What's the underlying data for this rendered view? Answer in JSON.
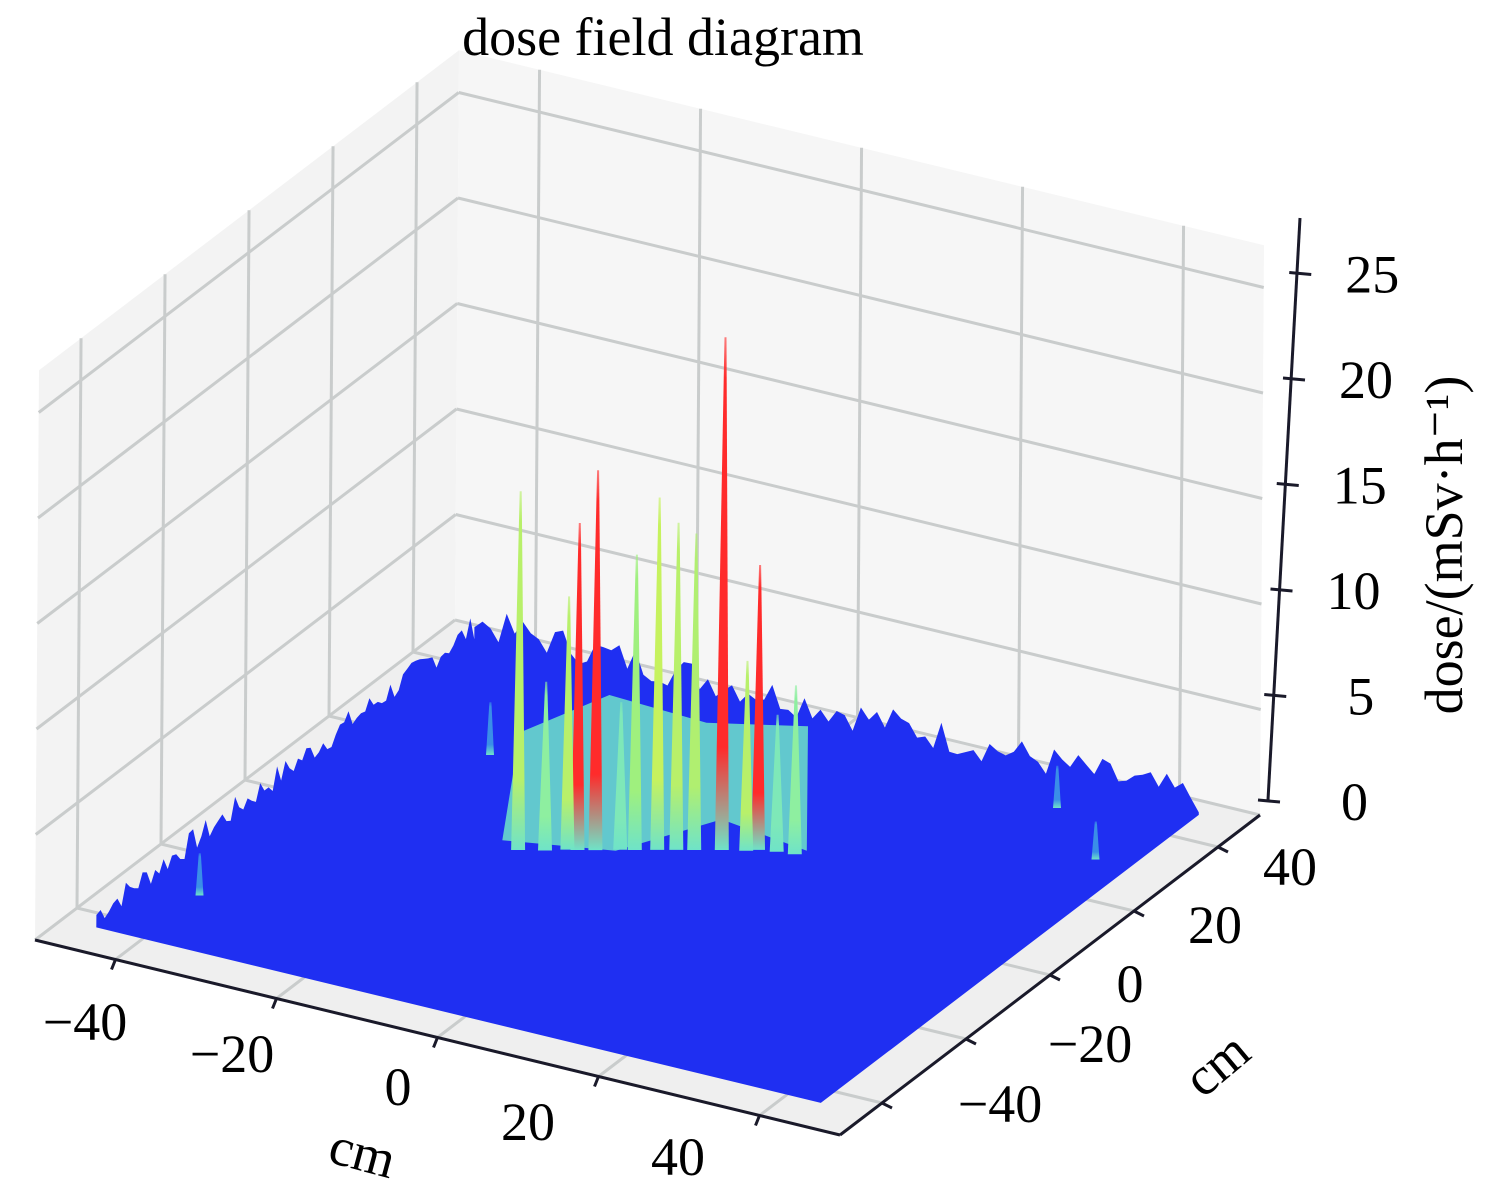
{
  "chart_data": {
    "type": "surface3d",
    "title": "dose field diagram",
    "xlabel": "cm",
    "ylabel": "cm",
    "zlabel": "dose/(mSv·h⁻¹)",
    "xlim": [
      -50,
      50
    ],
    "ylim": [
      -50,
      50
    ],
    "zlim": [
      0,
      27
    ],
    "xticks": [
      "−40",
      "−20",
      "0",
      "20",
      "40"
    ],
    "xtick_values": [
      -40,
      -20,
      0,
      20,
      40
    ],
    "yticks": [
      "−40",
      "−20",
      "0",
      "20",
      "40"
    ],
    "ytick_values": [
      -40,
      -20,
      0,
      20,
      40
    ],
    "zticks": [
      "0",
      "5",
      "10",
      "15",
      "20",
      "25"
    ],
    "ztick_values": [
      0,
      5,
      10,
      15,
      20,
      25
    ],
    "grid": true,
    "background_level": 0.3,
    "surface_extent": [
      -45,
      45
    ],
    "colors": {
      "low": "#1f2ff2",
      "mid": "#6fe3c8",
      "high": "#c6f25e",
      "max": "#ff2b2b"
    },
    "peaks": [
      {
        "x": -15.6,
        "y": -0.9,
        "dose": 17.0,
        "color": "#b8f06a"
      },
      {
        "x": -11.0,
        "y": 2.0,
        "dose": 12.0,
        "color": "#b8f06a"
      },
      {
        "x": -10.0,
        "y": 2.5,
        "dose": 15.5,
        "color": "#ff2b2b"
      },
      {
        "x": -8.3,
        "y": 3.5,
        "dose": 18.0,
        "color": "#ff2b2b"
      },
      {
        "x": -4.6,
        "y": 5.8,
        "dose": 14.0,
        "color": "#9ff07e"
      },
      {
        "x": -2.5,
        "y": 7.1,
        "dose": 16.7,
        "color": "#c6f25e"
      },
      {
        "x": -0.7,
        "y": 8.2,
        "dose": 15.5,
        "color": "#b8f06a"
      },
      {
        "x": 1.0,
        "y": 9.2,
        "dose": 15.0,
        "color": "#b0ef70"
      },
      {
        "x": 3.6,
        "y": 10.8,
        "dose": 24.3,
        "color": "#ff2b2b"
      },
      {
        "x": 7.0,
        "y": 12.9,
        "dose": 13.5,
        "color": "#ff2b2b"
      },
      {
        "x": 6.0,
        "y": 12.0,
        "dose": 9.0,
        "color": "#b8f06a"
      },
      {
        "x": 11.0,
        "y": 14.0,
        "dose": 8.0,
        "color": "#8eefa0"
      },
      {
        "x": -13.0,
        "y": 0.5,
        "dose": 8.0,
        "color": "#8eefa0"
      },
      {
        "x": -6.0,
        "y": 5.0,
        "dose": 7.0,
        "color": "#7ee8b8"
      },
      {
        "x": 9.0,
        "y": 13.5,
        "dose": 6.5,
        "color": "#7ee8b8"
      },
      {
        "x": -30.0,
        "y": 20.0,
        "dose": 2.5,
        "color": "#3a8ee8"
      },
      {
        "x": -40.0,
        "y": -30.0,
        "dose": 2.0,
        "color": "#3a8ee8"
      },
      {
        "x": 30.0,
        "y": 40.0,
        "dose": 2.0,
        "color": "#3a8ee8"
      },
      {
        "x": 40.0,
        "y": 30.0,
        "dose": 1.8,
        "color": "#3a8ee8"
      }
    ]
  }
}
